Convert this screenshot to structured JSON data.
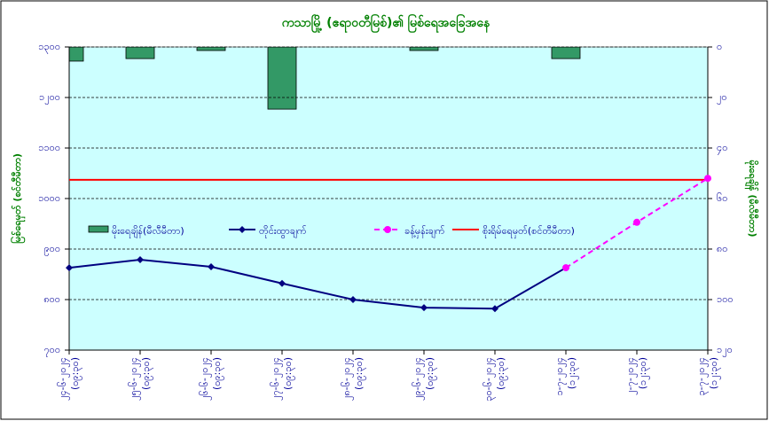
{
  "chart_data": {
    "type": "combo",
    "title": "ကသာမြို့ (ဧရာဝတီမြစ်)၏ မြစ်ရေအခြေအနေ",
    "y_label": "မြစ်ရေမှတ် (စင်တီမီတာ)",
    "y2_label": "မိုးရေချိန် (မီလီမီတာ)",
    "categories": [
      "၂၄-၆-၂၀၂၄",
      "၂၅-၆-၂၀၂၄",
      "၂၆-၆-၂၀၂၄",
      "၂၇-၆-၂၀၂၄",
      "၂၈-၆-၂၀၂၄",
      "၂၉-၆-၂၀၂၄",
      "၃၀-၆-၂၀၂၄",
      "၁-၇-၂၀၂၄",
      "၂-၇-၂၀၂၄",
      "၃-၇-၂၀၂၄"
    ],
    "times": [
      "(၀၉:၃၀)",
      "(၀၉:၃၀)",
      "(၀၉:၃၀)",
      "(၀၉:၃၀)",
      "(၀၉:၃၀)",
      "(၀၉:၃၀)",
      "(၀၉:၃၀)",
      "(၁၂:၃၀)",
      "(၁၂:၃၀)",
      "(၁၂:၃၀)"
    ],
    "series": [
      {
        "name": "မိုးရေချိန်(မီလီမီတာ)",
        "kind": "bar",
        "axis": "y2",
        "color": "#339966",
        "values": [
          5.6,
          4.6,
          1.4,
          24.6,
          0,
          1.4,
          0,
          4.6,
          null,
          null
        ]
      },
      {
        "name": "တိုင်းထွာချက်",
        "kind": "line",
        "color": "#000080",
        "marker": "diamond",
        "values": [
          863,
          879,
          865,
          832,
          800,
          784,
          782,
          863,
          null,
          null
        ]
      },
      {
        "name": "ခန့်မှန်းချက်",
        "kind": "line",
        "dashed": true,
        "color": "#ff00ff",
        "marker": "circle",
        "values": [
          null,
          null,
          null,
          null,
          null,
          null,
          null,
          863,
          953,
          1040
        ]
      }
    ],
    "danger_level": {
      "name": "စိုးရိမ်ရေမှတ်(စင်တီမီတာ)",
      "color": "#ff0000",
      "value": 1037
    },
    "ylim": [
      700,
      1300
    ],
    "yticks": [
      {
        "value": 700,
        "label": "၇၀၀"
      },
      {
        "value": 800,
        "label": "၈၀၀"
      },
      {
        "value": 900,
        "label": "၉၀၀"
      },
      {
        "value": 1000,
        "label": "၁၀၀၀"
      },
      {
        "value": 1100,
        "label": "၁၁၀၀"
      },
      {
        "value": 1200,
        "label": "၁၂၀၀"
      },
      {
        "value": 1300,
        "label": "၁၃၀၀"
      }
    ],
    "y2lim": [
      0,
      120
    ],
    "y2_reversed": true,
    "y2ticks": [
      {
        "value": 0,
        "label": "၀"
      },
      {
        "value": 20,
        "label": "၂၀"
      },
      {
        "value": 40,
        "label": "၄၀"
      },
      {
        "value": 60,
        "label": "၆၀"
      },
      {
        "value": 80,
        "label": "၈၀"
      },
      {
        "value": 100,
        "label": "၁၀၀"
      },
      {
        "value": 120,
        "label": "၁၂၀"
      }
    ],
    "grid": true
  }
}
